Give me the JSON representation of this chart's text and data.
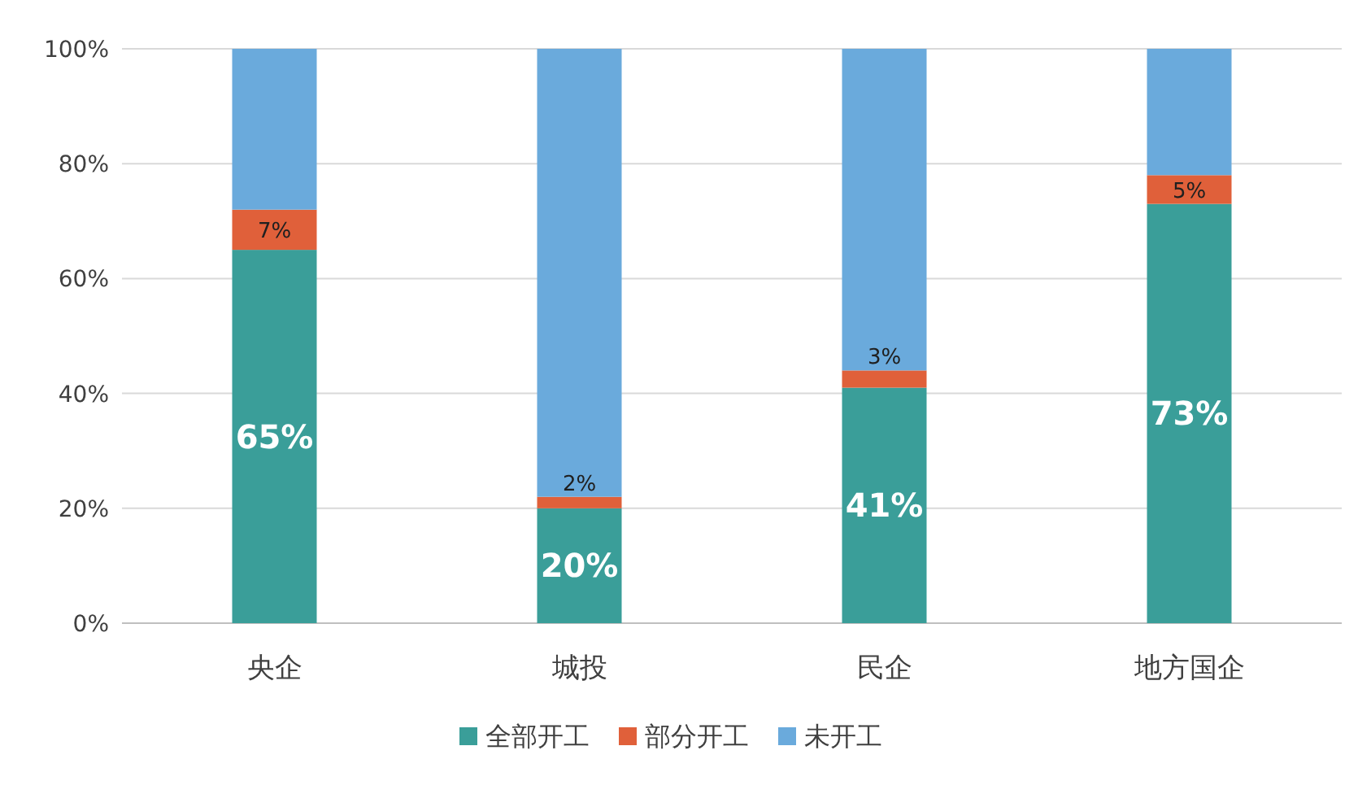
{
  "chart_data": {
    "type": "bar",
    "stacked": true,
    "categories": [
      "央企",
      "城投",
      "民企",
      "地方国企"
    ],
    "series": [
      {
        "name": "全部开工",
        "color": "#3a9e99",
        "values": [
          65,
          20,
          41,
          73
        ],
        "value_labels": [
          "65%",
          "20%",
          "41%",
          "73%"
        ]
      },
      {
        "name": "部分开工",
        "color": "#e0603a",
        "values": [
          7,
          2,
          3,
          5
        ],
        "value_labels": [
          "7%",
          "2%",
          "3%",
          "5%"
        ]
      },
      {
        "name": "未开工",
        "color": "#6aaadc",
        "values": [
          28,
          78,
          56,
          22
        ]
      }
    ],
    "ylim": [
      0,
      100
    ],
    "yticks": [
      {
        "value": 0,
        "label": "0%"
      },
      {
        "value": 20,
        "label": "20%"
      },
      {
        "value": 40,
        "label": "40%"
      },
      {
        "value": 60,
        "label": "60%"
      },
      {
        "value": 80,
        "label": "80%"
      },
      {
        "value": 100,
        "label": "100%"
      }
    ],
    "grid": "y",
    "legend": "bottom"
  }
}
